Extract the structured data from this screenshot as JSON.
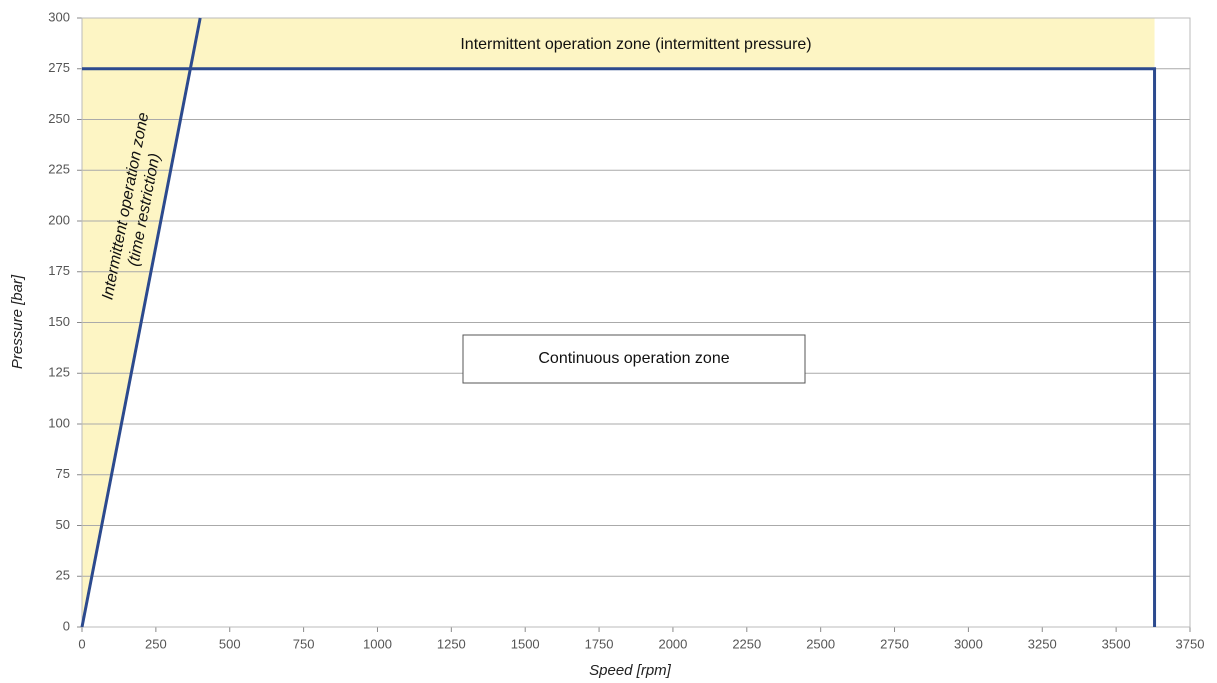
{
  "chart_data": {
    "type": "line",
    "x_label": "Speed [rpm]",
    "y_label": "Pressure [bar]",
    "xlim": [
      0,
      3750
    ],
    "xticks": [
      0,
      250,
      500,
      750,
      1000,
      1250,
      1500,
      1750,
      2000,
      2250,
      2500,
      2750,
      3000,
      3250,
      3500,
      3750
    ],
    "ylim": [
      0,
      300
    ],
    "yticks": [
      0,
      25,
      50,
      75,
      100,
      125,
      150,
      175,
      200,
      225,
      250,
      275,
      300
    ],
    "grid": true,
    "zones": [
      {
        "color": "#fdf5c4",
        "x": [
          0,
          0,
          3630,
          3630,
          367
        ],
        "y": [
          0,
          300,
          300,
          275,
          275
        ]
      }
    ],
    "series": [
      {
        "color": "#2c4a8e",
        "x": [
          0,
          400
        ],
        "values": [
          0,
          300
        ]
      },
      {
        "color": "#2c4a8e",
        "x": [
          0,
          3630,
          3630
        ],
        "values": [
          275,
          275,
          0
        ]
      }
    ],
    "annotations": {
      "top_zone": "Intermittent operation zone (intermittent pressure)",
      "side_zone": [
        "Intermittent operation zone",
        "(time restriction)"
      ],
      "main_zone": "Continuous operation zone"
    }
  }
}
